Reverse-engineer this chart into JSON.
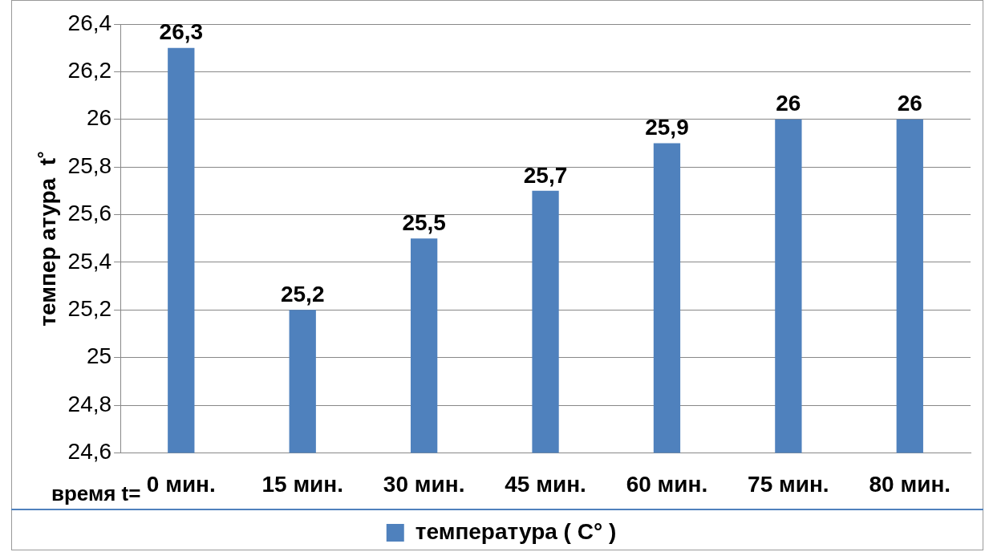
{
  "chart_data": {
    "type": "bar",
    "xlabel": "время t=",
    "ylabel": "темпер атура  t˚",
    "categories": [
      "0 мин.",
      "15 мин.",
      "30 мин.",
      "45 мин.",
      "60 мин.",
      "75 мин.",
      "80 мин."
    ],
    "series": [
      {
        "name": "температура ( C° )",
        "color": "#4f81bd",
        "values": [
          26.3,
          25.2,
          25.5,
          25.7,
          25.9,
          26,
          26
        ],
        "value_labels": [
          "26,3",
          "25,2",
          "25,5",
          "25,7",
          "25,9",
          "26",
          "26"
        ]
      }
    ],
    "ylim": [
      24.6,
      26.4
    ],
    "yticks": [
      {
        "value": 24.6,
        "label": "24,6"
      },
      {
        "value": 24.8,
        "label": "24,8"
      },
      25,
      {
        "value": 25.2,
        "label": "25,2"
      },
      {
        "value": 25.4,
        "label": "25,4"
      },
      {
        "value": 25.6,
        "label": "25,6"
      },
      {
        "value": 25.8,
        "label": "25,8"
      },
      26,
      {
        "value": 26.2,
        "label": "26,2"
      },
      {
        "value": 26.4,
        "label": "26,4"
      }
    ],
    "grid": "y",
    "legend": "bottom"
  }
}
